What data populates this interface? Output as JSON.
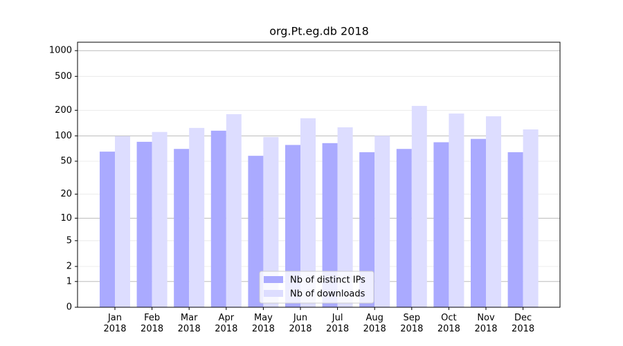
{
  "chart_data": {
    "type": "bar",
    "title": "org.Pt.eg.db 2018",
    "categories": [
      "Jan 2018",
      "Feb 2018",
      "Mar 2018",
      "Apr 2018",
      "May 2018",
      "Jun 2018",
      "Jul 2018",
      "Aug 2018",
      "Sep 2018",
      "Oct 2018",
      "Nov 2018",
      "Dec 2018"
    ],
    "series": [
      {
        "name": "Nb of distinct IPs",
        "color": "#aaaaff",
        "values": [
          65,
          85,
          70,
          115,
          58,
          78,
          82,
          64,
          70,
          84,
          92,
          64
        ]
      },
      {
        "name": "Nb of downloads",
        "color": "#ddddff",
        "values": [
          99,
          111,
          124,
          180,
          97,
          161,
          126,
          100,
          225,
          183,
          170,
          119
        ]
      }
    ],
    "yscale": "log1p",
    "ylim": [
      0,
      1255
    ],
    "yticks": [
      0,
      1,
      2,
      5,
      10,
      20,
      50,
      100,
      200,
      500,
      1000
    ],
    "grid": true,
    "legend": "lower center"
  }
}
